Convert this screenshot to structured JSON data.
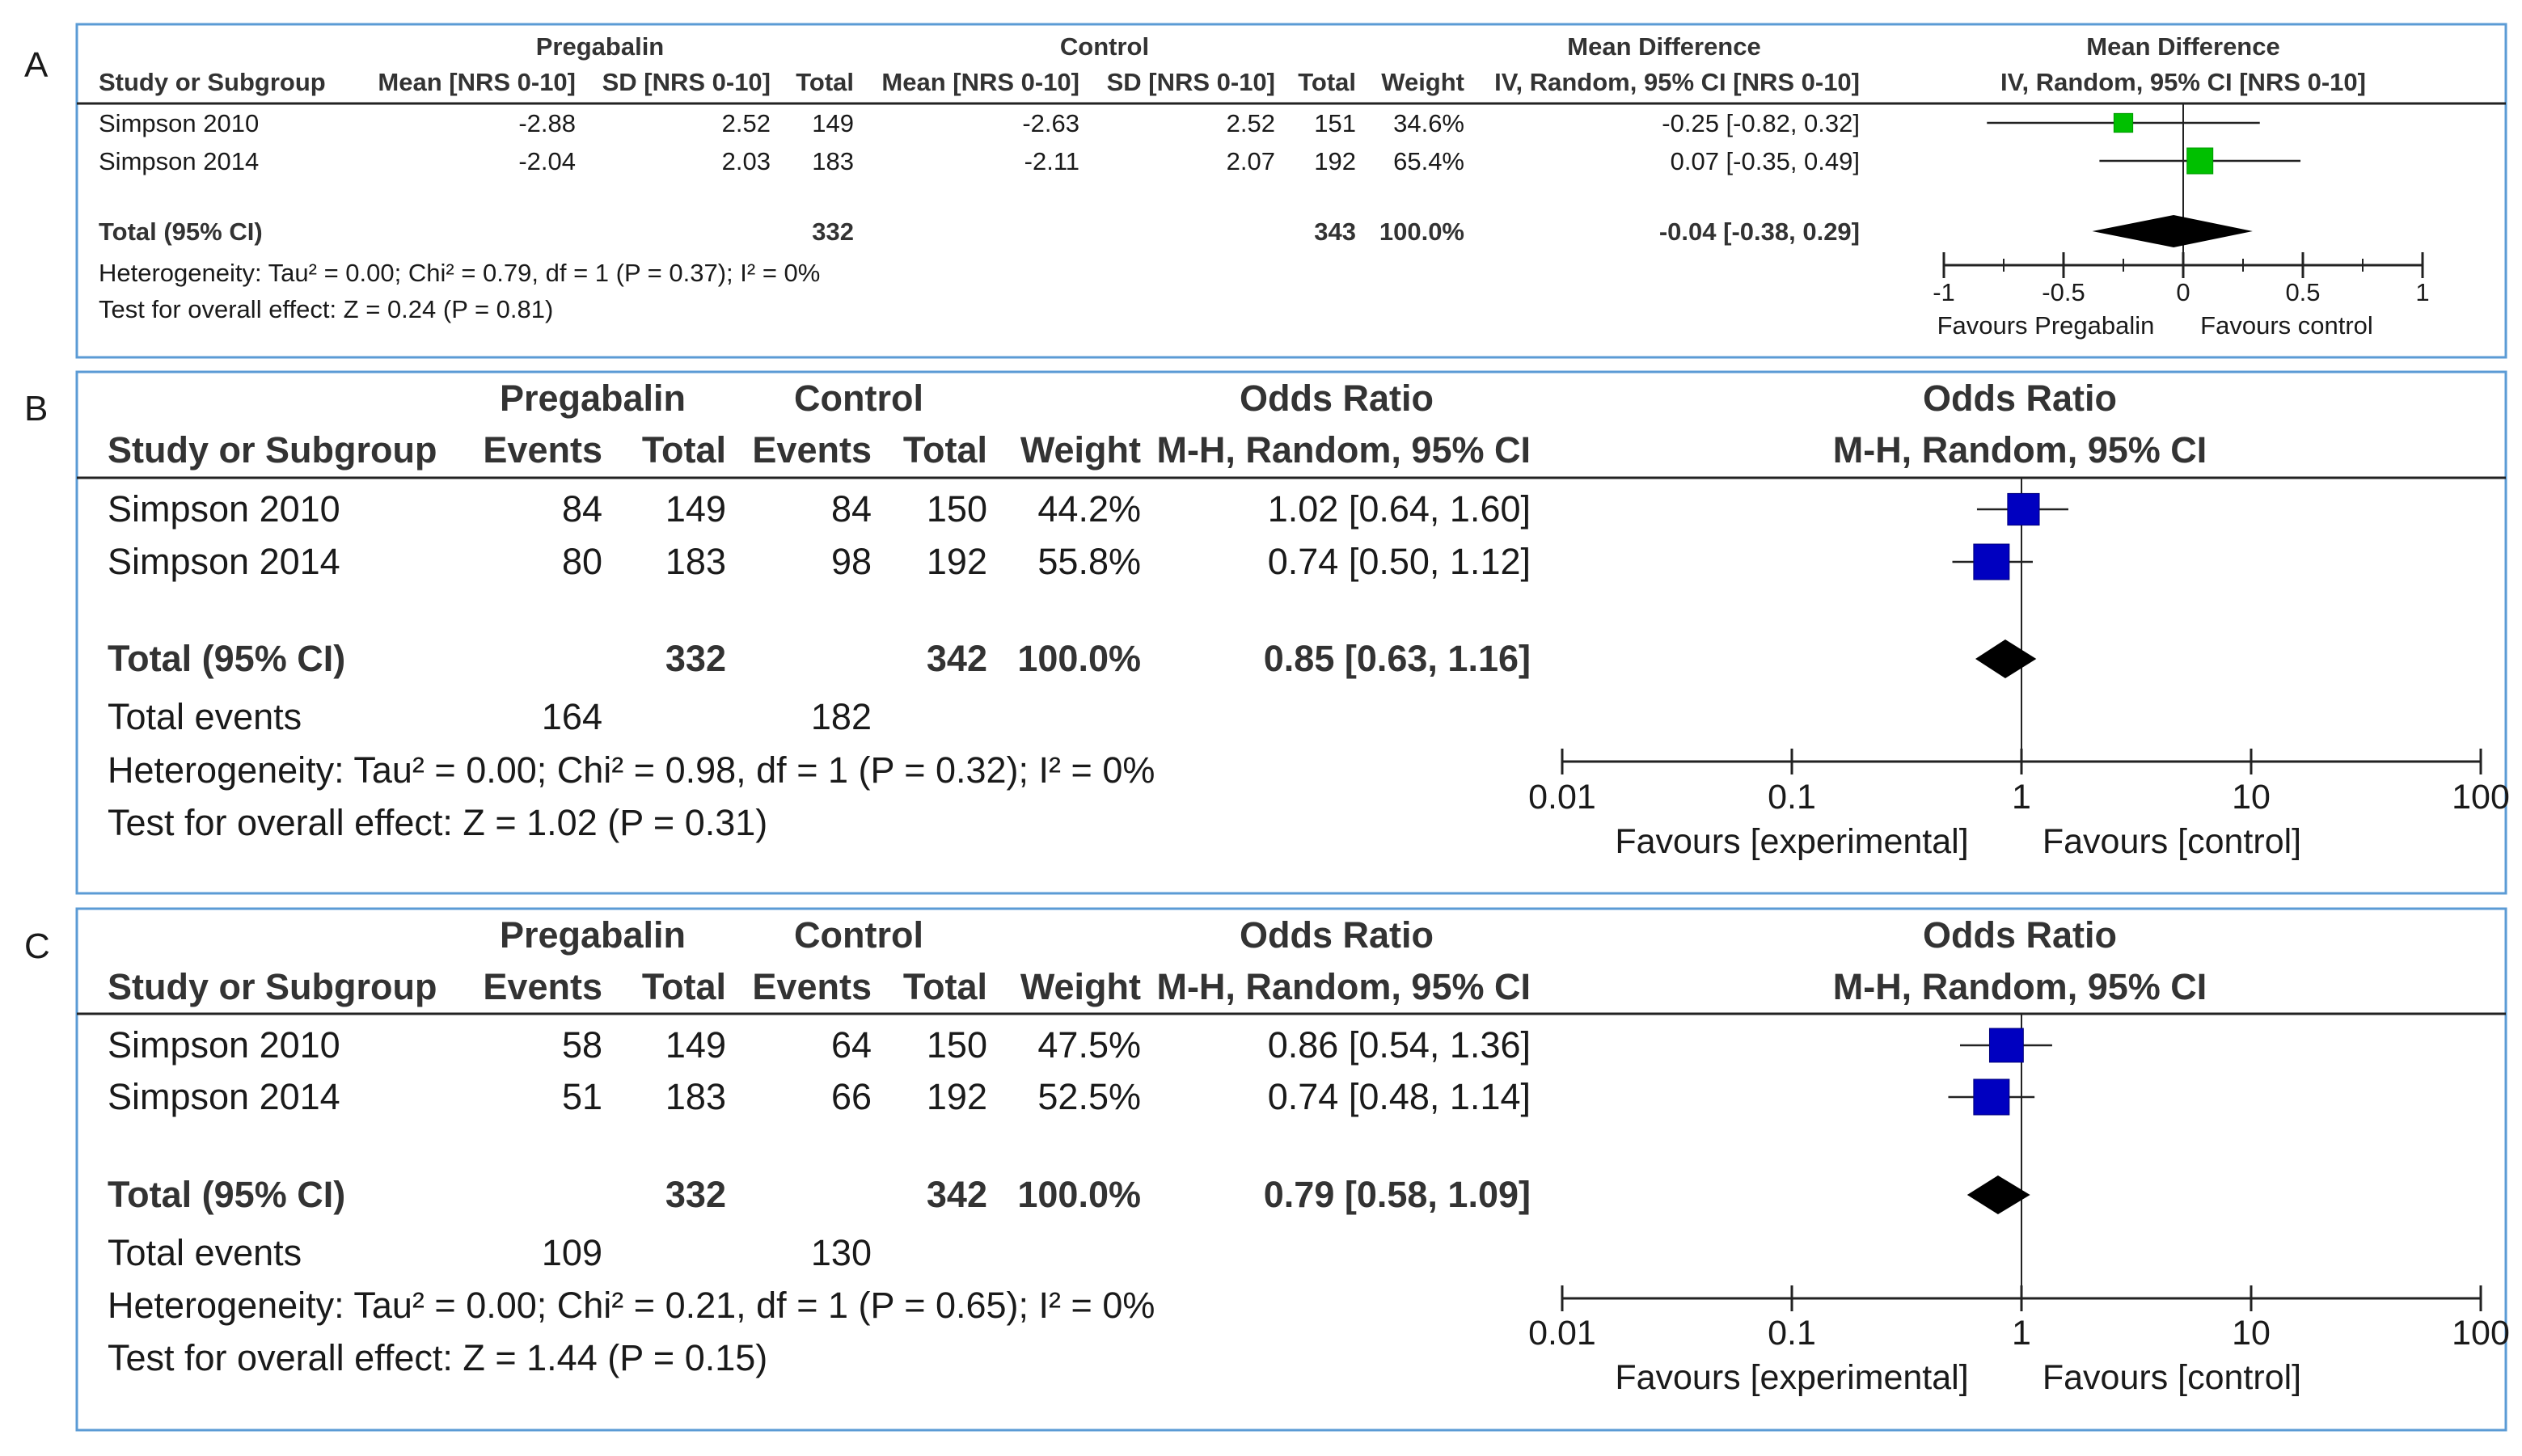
{
  "panels": [
    {
      "letter": "A",
      "kind": "md",
      "group1_header": "Pregabalin",
      "group2_header": "Control",
      "effect_header": "Mean Difference",
      "effect_subheader": "IV, Random, 95% CI [NRS 0-10]",
      "plot_header": "Mean Difference",
      "plot_subheader": "IV, Random, 95% CI [NRS 0-10]",
      "columns": [
        "Study or Subgroup",
        "Mean [NRS 0-10]",
        "SD [NRS 0-10]",
        "Total",
        "Mean [NRS 0-10]",
        "SD [NRS 0-10]",
        "Total",
        "Weight"
      ],
      "studies": [
        {
          "cells": [
            "Simpson 2010",
            "-2.88",
            "2.52",
            "149",
            "-2.63",
            "2.52",
            "151",
            "34.6%"
          ],
          "ci_text": "-0.25 [-0.82, 0.32]"
        },
        {
          "cells": [
            "Simpson 2014",
            "-2.04",
            "2.03",
            "183",
            "-2.11",
            "2.07",
            "192",
            "65.4%"
          ],
          "ci_text": "0.07 [-0.35, 0.49]"
        }
      ],
      "total": {
        "label": "Total (95% CI)",
        "total1": "332",
        "total2": "343",
        "weight": "100.0%",
        "ci_text": "-0.04 [-0.38, 0.29]"
      },
      "total_events": null,
      "heterogeneity": "Heterogeneity: Tau² = 0.00; Chi² = 0.79, df = 1 (P = 0.37); I² = 0%",
      "overall_effect": "Test for overall effect: Z = 0.24 (P = 0.81)",
      "axis_ticks": [
        "-1",
        "-0.5",
        "0",
        "0.5",
        "1"
      ],
      "favours_left": "Favours Pregabalin",
      "favours_right": "Favours control"
    },
    {
      "letter": "B",
      "kind": "or",
      "group1_header": "Pregabalin",
      "group2_header": "Control",
      "effect_header": "Odds Ratio",
      "effect_subheader": "M-H, Random, 95% CI",
      "plot_header": "Odds Ratio",
      "plot_subheader": "M-H, Random, 95% CI",
      "columns": [
        "Study or Subgroup",
        "Events",
        "Total",
        "Events",
        "Total",
        "Weight"
      ],
      "studies": [
        {
          "cells": [
            "Simpson 2010",
            "84",
            "149",
            "84",
            "150",
            "44.2%"
          ],
          "ci_text": "1.02 [0.64, 1.60]"
        },
        {
          "cells": [
            "Simpson 2014",
            "80",
            "183",
            "98",
            "192",
            "55.8%"
          ],
          "ci_text": "0.74 [0.50, 1.12]"
        }
      ],
      "total": {
        "label": "Total (95% CI)",
        "total1": "332",
        "total2": "342",
        "weight": "100.0%",
        "ci_text": "0.85 [0.63, 1.16]"
      },
      "total_events": {
        "label": "Total events",
        "e1": "164",
        "e2": "182"
      },
      "heterogeneity": "Heterogeneity: Tau² = 0.00; Chi² = 0.98, df = 1 (P = 0.32); I² = 0%",
      "overall_effect": "Test for overall effect: Z = 1.02 (P = 0.31)",
      "axis_ticks": [
        "0.01",
        "0.1",
        "1",
        "10",
        "100"
      ],
      "favours_left": "Favours [experimental]",
      "favours_right": "Favours [control]"
    },
    {
      "letter": "C",
      "kind": "or",
      "group1_header": "Pregabalin",
      "group2_header": "Control",
      "effect_header": "Odds Ratio",
      "effect_subheader": "M-H, Random, 95% CI",
      "plot_header": "Odds Ratio",
      "plot_subheader": "M-H, Random, 95% CI",
      "columns": [
        "Study or Subgroup",
        "Events",
        "Total",
        "Events",
        "Total",
        "Weight"
      ],
      "studies": [
        {
          "cells": [
            "Simpson 2010",
            "58",
            "149",
            "64",
            "150",
            "47.5%"
          ],
          "ci_text": "0.86 [0.54, 1.36]"
        },
        {
          "cells": [
            "Simpson 2014",
            "51",
            "183",
            "66",
            "192",
            "52.5%"
          ],
          "ci_text": "0.74 [0.48, 1.14]"
        }
      ],
      "total": {
        "label": "Total (95% CI)",
        "total1": "332",
        "total2": "342",
        "weight": "100.0%",
        "ci_text": "0.79 [0.58, 1.09]"
      },
      "total_events": {
        "label": "Total events",
        "e1": "109",
        "e2": "130"
      },
      "heterogeneity": "Heterogeneity: Tau² = 0.00; Chi² = 0.21, df = 1 (P = 0.65); I² = 0%",
      "overall_effect": "Test for overall effect: Z = 1.44 (P = 0.15)",
      "axis_ticks": [
        "0.01",
        "0.1",
        "1",
        "10",
        "100"
      ],
      "favours_left": "Favours [experimental]",
      "favours_right": "Favours [control]"
    }
  ],
  "chart_data": [
    {
      "type": "forest",
      "panel": "A",
      "scale": "linear",
      "xlim": [
        -1,
        1
      ],
      "null_value": 0,
      "marker_color": "#00c000",
      "title": "Mean Difference IV, Random, 95% CI [NRS 0-10]",
      "series": [
        {
          "name": "Simpson 2010",
          "estimate": -0.25,
          "lower": -0.82,
          "upper": 0.32,
          "weight": 34.6
        },
        {
          "name": "Simpson 2014",
          "estimate": 0.07,
          "lower": -0.35,
          "upper": 0.49,
          "weight": 65.4
        }
      ],
      "pooled": {
        "name": "Total (95% CI)",
        "estimate": -0.04,
        "lower": -0.38,
        "upper": 0.29
      }
    },
    {
      "type": "forest",
      "panel": "B",
      "scale": "log",
      "xlim": [
        0.01,
        100
      ],
      "null_value": 1,
      "marker_color": "#0000c0",
      "title": "Odds Ratio M-H, Random, 95% CI",
      "series": [
        {
          "name": "Simpson 2010",
          "estimate": 1.02,
          "lower": 0.64,
          "upper": 1.6,
          "weight": 44.2
        },
        {
          "name": "Simpson 2014",
          "estimate": 0.74,
          "lower": 0.5,
          "upper": 1.12,
          "weight": 55.8
        }
      ],
      "pooled": {
        "name": "Total (95% CI)",
        "estimate": 0.85,
        "lower": 0.63,
        "upper": 1.16
      }
    },
    {
      "type": "forest",
      "panel": "C",
      "scale": "log",
      "xlim": [
        0.01,
        100
      ],
      "null_value": 1,
      "marker_color": "#0000c0",
      "title": "Odds Ratio M-H, Random, 95% CI",
      "series": [
        {
          "name": "Simpson 2010",
          "estimate": 0.86,
          "lower": 0.54,
          "upper": 1.36,
          "weight": 47.5
        },
        {
          "name": "Simpson 2014",
          "estimate": 0.74,
          "lower": 0.48,
          "upper": 1.14,
          "weight": 52.5
        }
      ],
      "pooled": {
        "name": "Total (95% CI)",
        "estimate": 0.79,
        "lower": 0.58,
        "upper": 1.09
      }
    }
  ]
}
